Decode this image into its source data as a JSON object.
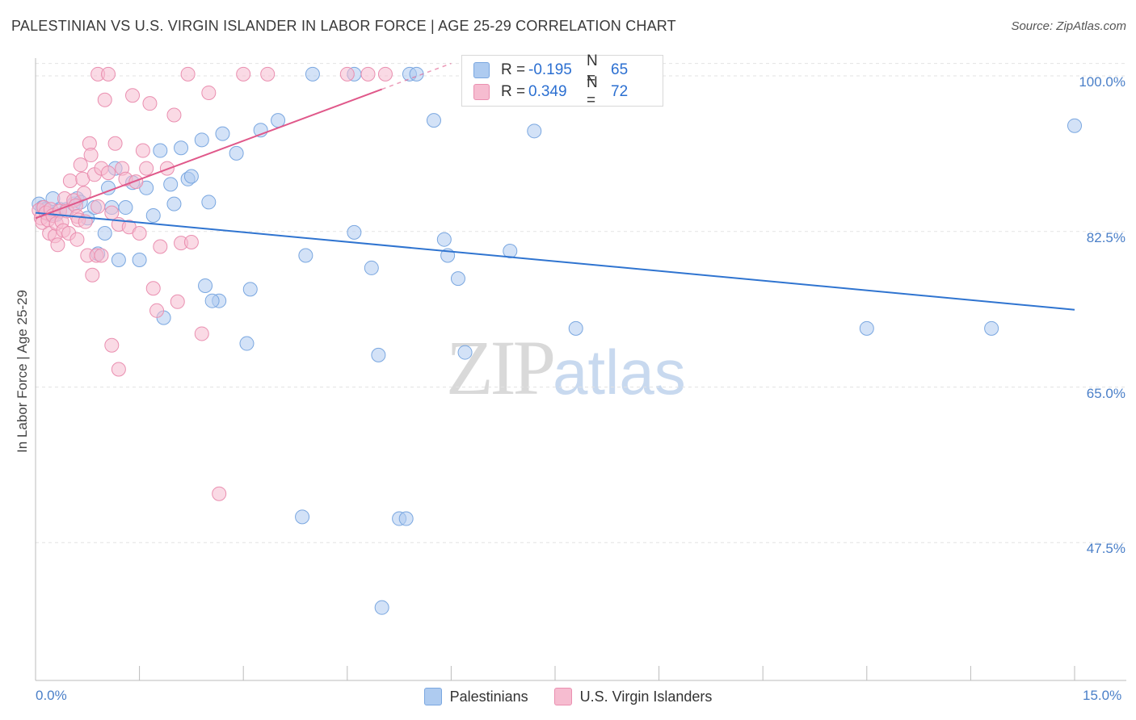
{
  "title": "PALESTINIAN VS U.S. VIRGIN ISLANDER IN LABOR FORCE | AGE 25-29 CORRELATION CHART",
  "source": "Source: ZipAtlas.com",
  "watermark": {
    "part1": "ZIP",
    "part2": "atlas"
  },
  "legend": {
    "rows": [
      {
        "r_label": "R =",
        "r_value": "-0.195",
        "n_label": "N =",
        "n_value": "65"
      },
      {
        "r_label": "R =",
        "r_value": "0.349",
        "n_label": "N =",
        "n_value": "72"
      }
    ]
  },
  "colors": {
    "blue_fill": "#aecbf0",
    "blue_stroke": "#7aa7e0",
    "blue_line": "#2f74d0",
    "pink_fill": "#f6bcd0",
    "pink_stroke": "#ea8fb0",
    "pink_line": "#e0588a",
    "grid": "#e3e3e3",
    "tick_text": "#4a7fc8"
  },
  "chart_data": {
    "type": "scatter",
    "title": "PALESTINIAN VS U.S. VIRGIN ISLANDER IN LABOR FORCE | AGE 25-29 CORRELATION CHART",
    "xlabel": "",
    "ylabel": "In Labor Force | Age 25-29",
    "xlim": [
      0,
      15
    ],
    "ylim": [
      32,
      102
    ],
    "x_tick_labels": [
      "0.0%",
      "15.0%"
    ],
    "y_ticks": [
      47.5,
      65.0,
      82.5,
      100.0
    ],
    "y_tick_labels": [
      "47.5%",
      "65.0%",
      "82.5%",
      "100.0%"
    ],
    "series": [
      {
        "name": "Palestinians",
        "color": "#aecbf0",
        "trend": {
          "x": [
            0.0,
            15.0
          ],
          "y": [
            84.6,
            73.7
          ],
          "dashed_from": null
        },
        "points": [
          [
            0.05,
            85.6
          ],
          [
            0.1,
            85.2
          ],
          [
            0.15,
            85.0
          ],
          [
            0.2,
            84.4
          ],
          [
            0.25,
            86.2
          ],
          [
            0.3,
            84.4
          ],
          [
            0.35,
            85.0
          ],
          [
            0.45,
            85.0
          ],
          [
            0.55,
            85.6
          ],
          [
            0.6,
            86.2
          ],
          [
            0.65,
            85.8
          ],
          [
            0.75,
            84.0
          ],
          [
            0.85,
            85.2
          ],
          [
            1.0,
            82.3
          ],
          [
            1.05,
            87.4
          ],
          [
            1.1,
            85.2
          ],
          [
            1.15,
            89.6
          ],
          [
            1.2,
            79.3
          ],
          [
            1.3,
            85.2
          ],
          [
            1.4,
            88.0
          ],
          [
            1.5,
            79.3
          ],
          [
            1.6,
            87.4
          ],
          [
            1.7,
            84.3
          ],
          [
            1.8,
            91.6
          ],
          [
            1.85,
            72.8
          ],
          [
            1.95,
            87.8
          ],
          [
            2.0,
            85.6
          ],
          [
            2.1,
            91.9
          ],
          [
            2.2,
            88.4
          ],
          [
            2.25,
            88.7
          ],
          [
            2.4,
            92.8
          ],
          [
            2.45,
            76.4
          ],
          [
            2.5,
            85.8
          ],
          [
            2.65,
            74.7
          ],
          [
            2.7,
            93.5
          ],
          [
            2.9,
            91.3
          ],
          [
            3.05,
            69.9
          ],
          [
            3.1,
            76.0
          ],
          [
            3.25,
            93.9
          ],
          [
            3.5,
            95.0
          ],
          [
            3.85,
            50.4
          ],
          [
            3.9,
            79.8
          ],
          [
            4.0,
            100.2
          ],
          [
            4.6,
            100.2
          ],
          [
            4.6,
            82.4
          ],
          [
            4.85,
            78.4
          ],
          [
            4.95,
            68.6
          ],
          [
            5.25,
            50.2
          ],
          [
            5.35,
            50.2
          ],
          [
            5.4,
            100.2
          ],
          [
            5.5,
            100.2
          ],
          [
            5.75,
            95.0
          ],
          [
            5.9,
            81.6
          ],
          [
            5.95,
            79.8
          ],
          [
            6.1,
            77.2
          ],
          [
            6.2,
            68.9
          ],
          [
            6.85,
            80.3
          ],
          [
            7.2,
            93.8
          ],
          [
            7.8,
            71.6
          ],
          [
            12.0,
            71.6
          ],
          [
            13.8,
            71.6
          ],
          [
            15.0,
            94.4
          ],
          [
            0.9,
            80.0
          ],
          [
            2.55,
            74.7
          ],
          [
            5.0,
            40.2
          ]
        ]
      },
      {
        "name": "U.S. Virgin Islanders",
        "color": "#f6bcd0",
        "trend": {
          "x": [
            0.0,
            5.0
          ],
          "y": [
            84.0,
            98.5
          ],
          "dashed_from": 5.0
        },
        "points": [
          [
            0.05,
            84.9
          ],
          [
            0.08,
            84.0
          ],
          [
            0.1,
            83.5
          ],
          [
            0.12,
            85.2
          ],
          [
            0.15,
            84.6
          ],
          [
            0.18,
            83.8
          ],
          [
            0.2,
            82.3
          ],
          [
            0.22,
            85.0
          ],
          [
            0.25,
            84.3
          ],
          [
            0.28,
            82.0
          ],
          [
            0.3,
            83.4
          ],
          [
            0.32,
            81.0
          ],
          [
            0.35,
            84.8
          ],
          [
            0.38,
            83.6
          ],
          [
            0.4,
            82.6
          ],
          [
            0.42,
            86.2
          ],
          [
            0.45,
            84.8
          ],
          [
            0.48,
            82.3
          ],
          [
            0.5,
            88.2
          ],
          [
            0.55,
            86.0
          ],
          [
            0.58,
            85.4
          ],
          [
            0.6,
            84.2
          ],
          [
            0.62,
            83.8
          ],
          [
            0.65,
            90.0
          ],
          [
            0.68,
            88.4
          ],
          [
            0.7,
            86.8
          ],
          [
            0.72,
            83.6
          ],
          [
            0.75,
            79.8
          ],
          [
            0.78,
            92.4
          ],
          [
            0.8,
            91.1
          ],
          [
            0.82,
            77.6
          ],
          [
            0.85,
            88.9
          ],
          [
            0.88,
            79.8
          ],
          [
            0.9,
            85.3
          ],
          [
            0.95,
            89.6
          ],
          [
            1.0,
            97.3
          ],
          [
            1.05,
            89.1
          ],
          [
            1.1,
            84.6
          ],
          [
            1.15,
            92.4
          ],
          [
            1.2,
            83.3
          ],
          [
            1.25,
            89.6
          ],
          [
            1.3,
            88.4
          ],
          [
            1.35,
            83.0
          ],
          [
            1.4,
            97.8
          ],
          [
            1.45,
            88.1
          ],
          [
            1.5,
            82.3
          ],
          [
            1.55,
            91.6
          ],
          [
            1.6,
            89.6
          ],
          [
            1.65,
            96.9
          ],
          [
            1.7,
            76.1
          ],
          [
            1.75,
            73.6
          ],
          [
            1.8,
            80.8
          ],
          [
            1.9,
            89.6
          ],
          [
            2.0,
            95.6
          ],
          [
            2.05,
            74.6
          ],
          [
            2.1,
            81.2
          ],
          [
            2.2,
            100.2
          ],
          [
            2.25,
            81.3
          ],
          [
            2.4,
            71.0
          ],
          [
            2.5,
            98.1
          ],
          [
            2.65,
            53.0
          ],
          [
            3.0,
            100.2
          ],
          [
            3.35,
            100.2
          ],
          [
            4.5,
            100.2
          ],
          [
            4.8,
            100.2
          ],
          [
            5.05,
            100.2
          ],
          [
            1.1,
            69.7
          ],
          [
            1.2,
            67.0
          ],
          [
            0.9,
            100.2
          ],
          [
            1.05,
            100.2
          ],
          [
            0.95,
            79.8
          ],
          [
            0.6,
            81.6
          ]
        ]
      }
    ]
  },
  "bottom_legend": [
    {
      "label": "Palestinians"
    },
    {
      "label": "U.S. Virgin Islanders"
    }
  ]
}
